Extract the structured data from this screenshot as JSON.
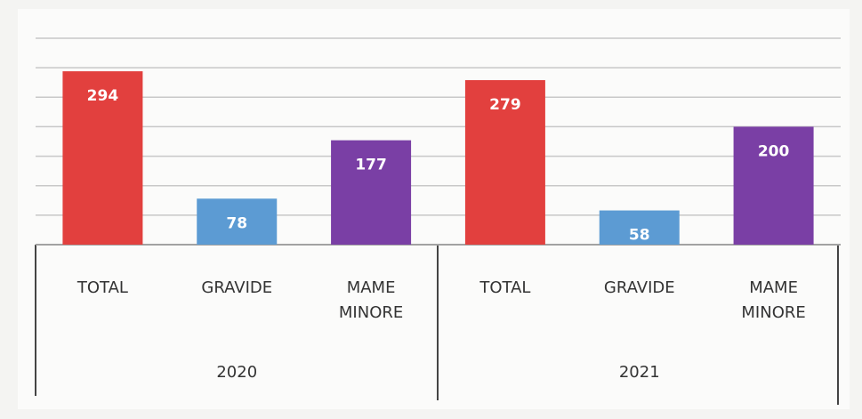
{
  "chart_data": {
    "type": "bar",
    "categories": [
      "TOTAL",
      "GRAVIDE",
      "MAME MINORE",
      "TOTAL",
      "GRAVIDE",
      "MAME MINORE"
    ],
    "groups": [
      "2020",
      "2021"
    ],
    "values": [
      294,
      78,
      177,
      279,
      58,
      200
    ],
    "colors": [
      "#e2403e",
      "#5c9bd3",
      "#7a3fa5",
      "#e2403e",
      "#5c9bd3",
      "#7a3fa5"
    ],
    "ylim": [
      0,
      350
    ],
    "yticks": [
      0,
      50,
      100,
      150,
      200,
      250,
      300,
      350
    ],
    "grid": true
  }
}
